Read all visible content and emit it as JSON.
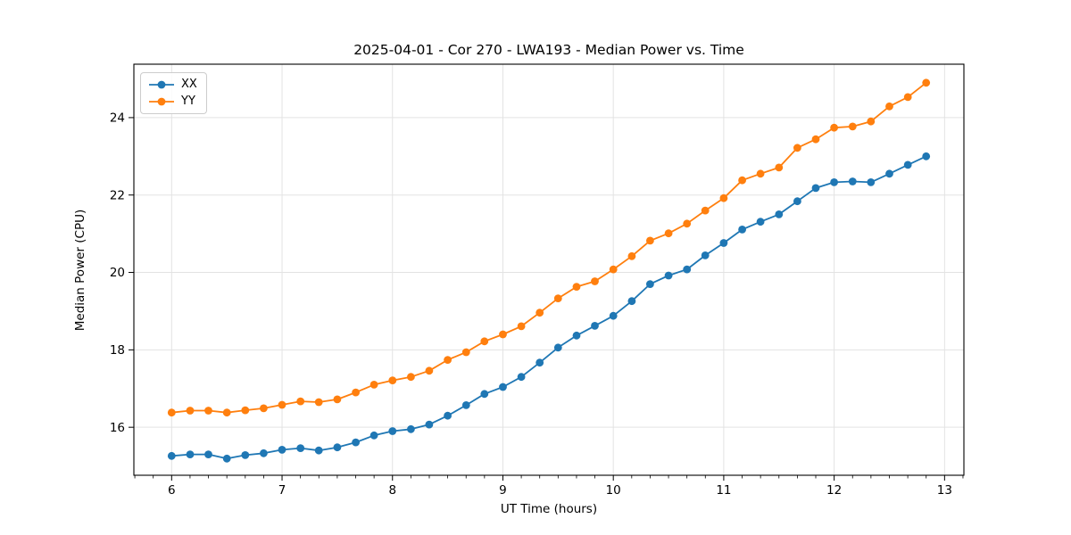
{
  "title": "2025-04-01 - Cor 270 - LWA193 - Median Power vs. Time",
  "chart_data": {
    "type": "line",
    "title": "2025-04-01 - Cor 270 - LWA193 - Median Power vs. Time",
    "xlabel": "UT Time (hours)",
    "ylabel": "Median Power (CPU)",
    "xlim": [
      5.658,
      13.175
    ],
    "ylim": [
      14.76,
      25.38
    ],
    "xticks": [
      6,
      7,
      8,
      9,
      10,
      11,
      12,
      13
    ],
    "yticks": [
      16,
      18,
      20,
      22,
      24
    ],
    "x_minor_step": 0.16667,
    "grid": true,
    "legend_position": "upper-left",
    "background": "#ffffff",
    "grid_color": "#e3e3e3",
    "spine_color": "#000000",
    "x": [
      6.0,
      6.167,
      6.333,
      6.5,
      6.667,
      6.833,
      7.0,
      7.167,
      7.333,
      7.5,
      7.667,
      7.833,
      8.0,
      8.167,
      8.333,
      8.5,
      8.667,
      8.833,
      9.0,
      9.167,
      9.333,
      9.5,
      9.667,
      9.833,
      10.0,
      10.167,
      10.333,
      10.5,
      10.667,
      10.833,
      11.0,
      11.167,
      11.333,
      11.5,
      11.667,
      11.833,
      12.0,
      12.167,
      12.333,
      12.5,
      12.667,
      12.833
    ],
    "series": [
      {
        "name": "XX",
        "color": "#1f77b4",
        "values": [
          15.26,
          15.3,
          15.3,
          15.19,
          15.28,
          15.33,
          15.42,
          15.46,
          15.4,
          15.48,
          15.61,
          15.79,
          15.9,
          15.95,
          16.07,
          16.3,
          16.57,
          16.86,
          17.04,
          17.3,
          17.67,
          18.06,
          18.37,
          18.62,
          18.88,
          19.26,
          19.7,
          19.92,
          20.08,
          20.44,
          20.76,
          21.11,
          21.31,
          21.5,
          21.84,
          22.18,
          22.33,
          22.35,
          22.33,
          22.55,
          22.78,
          23.0
        ]
      },
      {
        "name": "YY",
        "color": "#ff7f0e",
        "values": [
          16.38,
          16.43,
          16.43,
          16.38,
          16.44,
          16.49,
          16.58,
          16.67,
          16.65,
          16.72,
          16.9,
          17.1,
          17.21,
          17.3,
          17.46,
          17.74,
          17.94,
          18.22,
          18.4,
          18.61,
          18.96,
          19.33,
          19.63,
          19.77,
          20.08,
          20.42,
          20.82,
          21.01,
          21.26,
          21.6,
          21.92,
          22.38,
          22.55,
          22.71,
          23.22,
          23.44,
          23.74,
          23.77,
          23.9,
          24.29,
          24.53,
          24.9
        ]
      }
    ]
  }
}
